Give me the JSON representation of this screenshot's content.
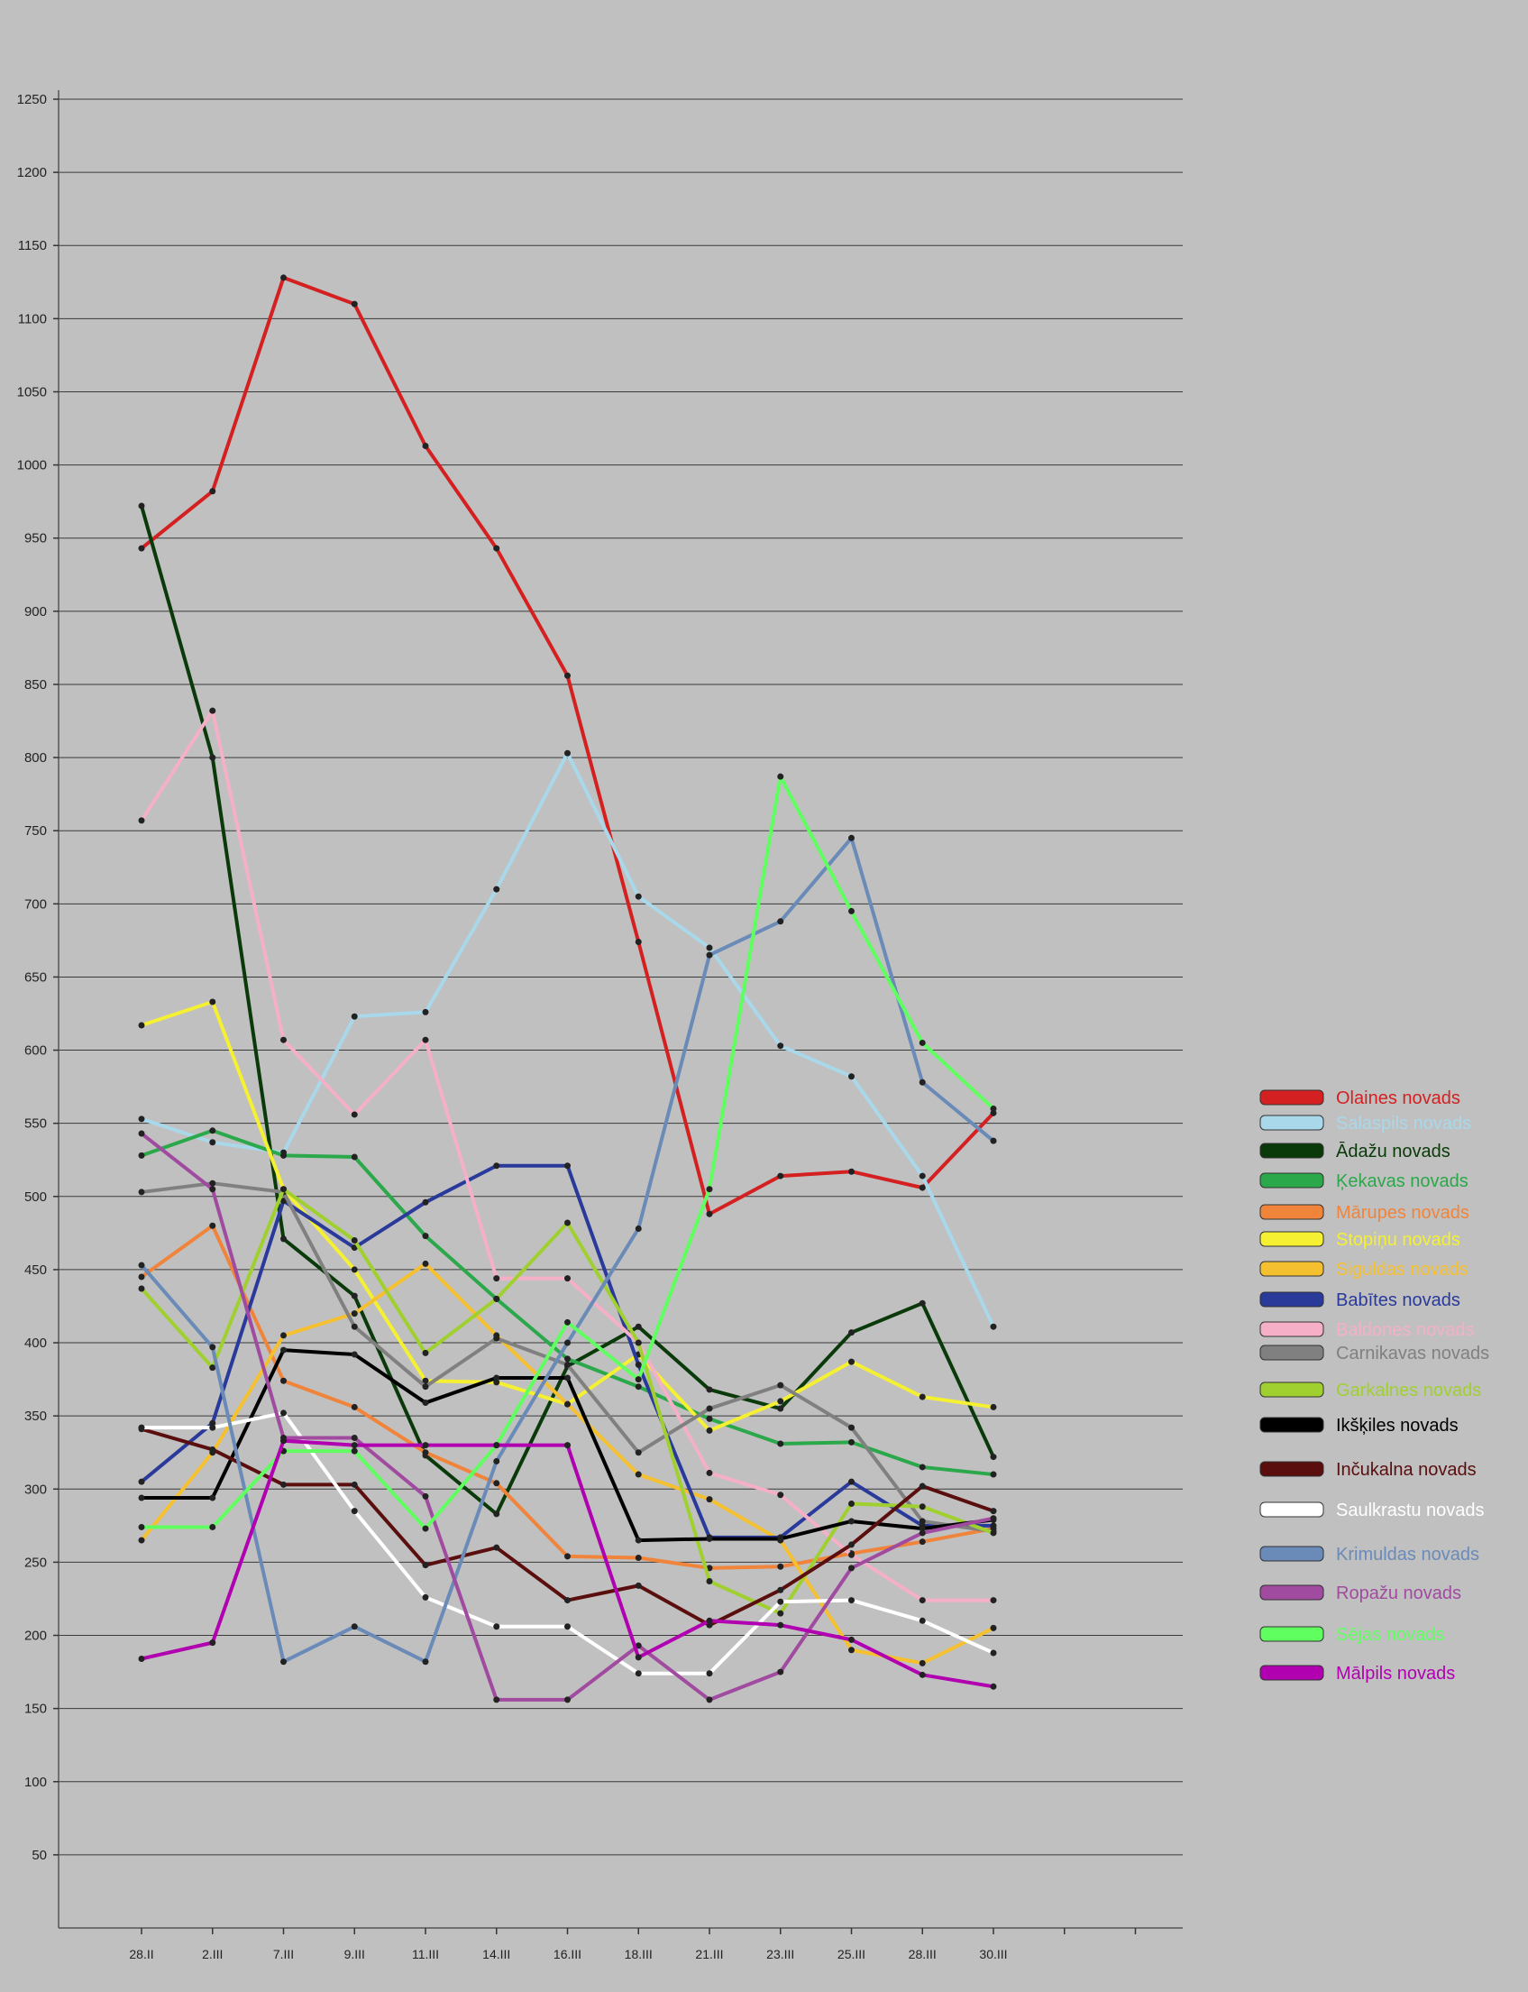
{
  "chart_data": {
    "type": "line",
    "title": "",
    "xlabel": "",
    "ylabel": "",
    "categories": [
      "28.II",
      "2.III",
      "7.III",
      "9.III",
      "11.III",
      "14.III",
      "16.III",
      "18.III",
      "21.III",
      "23.III",
      "25.III",
      "28.III",
      "30.III"
    ],
    "ylim": [
      0,
      1250
    ],
    "yticks": [
      50,
      100,
      150,
      200,
      250,
      300,
      350,
      400,
      450,
      500,
      550,
      600,
      650,
      700,
      750,
      800,
      850,
      900,
      950,
      1000,
      1050,
      1100,
      1150,
      1200,
      1250
    ],
    "grid": true,
    "legend_position": "right",
    "series": [
      {
        "name": "Olaines novads",
        "color": "#d42020",
        "values": [
          943,
          982,
          1128,
          1110,
          1013,
          943,
          856,
          674,
          488,
          514,
          517,
          506,
          557
        ]
      },
      {
        "name": "Salaspils novads",
        "color": "#a8d8ea",
        "values": [
          553,
          537,
          530,
          623,
          626,
          710,
          803,
          705,
          670,
          603,
          582,
          514,
          411
        ]
      },
      {
        "name": "Ādažu novads",
        "color": "#0a3a0a",
        "values": [
          972,
          800,
          471,
          432,
          323,
          283,
          384,
          411,
          368,
          355,
          407,
          427,
          322
        ]
      },
      {
        "name": "Ķekavas novads",
        "color": "#2aa84a",
        "values": [
          528,
          545,
          528,
          527,
          473,
          430,
          389,
          370,
          348,
          331,
          332,
          315,
          310
        ]
      },
      {
        "name": "Mārupes novads",
        "color": "#f0843a",
        "values": [
          445,
          480,
          374,
          356,
          325,
          304,
          254,
          253,
          246,
          247,
          256,
          264,
          273
        ]
      },
      {
        "name": "Stopiņu novads",
        "color": "#f5f032",
        "values": [
          617,
          633,
          505,
          450,
          374,
          373,
          358,
          392,
          340,
          360,
          387,
          363,
          356
        ]
      },
      {
        "name": "Siguldas novads",
        "color": "#f5c030",
        "values": [
          265,
          325,
          405,
          420,
          454,
          405,
          358,
          310,
          293,
          265,
          190,
          181,
          205
        ]
      },
      {
        "name": "Babītes novads",
        "color": "#2a3a9a",
        "values": [
          305,
          345,
          497,
          465,
          496,
          521,
          521,
          385,
          267,
          267,
          305,
          275,
          275
        ]
      },
      {
        "name": "Baldones novads",
        "color": "#f5b0c8",
        "values": [
          757,
          832,
          607,
          556,
          607,
          444,
          444,
          400,
          311,
          296,
          255,
          224,
          224
        ]
      },
      {
        "name": "Carnikavas novads",
        "color": "#808080",
        "values": [
          503,
          509,
          503,
          411,
          370,
          403,
          385,
          325,
          355,
          371,
          342,
          278,
          271
        ]
      },
      {
        "name": "Garkalnes novads",
        "color": "#a0d030",
        "values": [
          437,
          383,
          505,
          470,
          393,
          430,
          482,
          400,
          237,
          215,
          290,
          288,
          270
        ]
      },
      {
        "name": "Ikšķiles novads",
        "color": "#000000",
        "values": [
          294,
          294,
          395,
          392,
          359,
          376,
          376,
          265,
          266,
          266,
          278,
          273,
          279
        ]
      },
      {
        "name": "Inčukalna novads",
        "color": "#5a0e0e",
        "values": [
          341,
          327,
          303,
          303,
          248,
          260,
          224,
          234,
          207,
          231,
          262,
          302,
          285
        ]
      },
      {
        "name": "Saulkrastu novads",
        "color": "#ffffff",
        "values": [
          342,
          342,
          352,
          285,
          226,
          206,
          206,
          174,
          174,
          223,
          224,
          210,
          188
        ]
      },
      {
        "name": "Krimuldas novads",
        "color": "#6a8ab8",
        "values": [
          453,
          397,
          182,
          206,
          182,
          319,
          400,
          478,
          665,
          688,
          745,
          578,
          538
        ]
      },
      {
        "name": "Ropažu novads",
        "color": "#a04aa0",
        "values": [
          543,
          505,
          335,
          335,
          295,
          156,
          156,
          193,
          156,
          175,
          246,
          270,
          280
        ]
      },
      {
        "name": "Sējas novads",
        "color": "#60ff60",
        "values": [
          274,
          274,
          326,
          326,
          273,
          330,
          414,
          375,
          505,
          787,
          695,
          605,
          560
        ]
      },
      {
        "name": "Mālpils novads",
        "color": "#b000b0",
        "values": [
          184,
          195,
          333,
          330,
          330,
          330,
          330,
          185,
          210,
          207,
          197,
          173,
          165
        ]
      }
    ]
  }
}
